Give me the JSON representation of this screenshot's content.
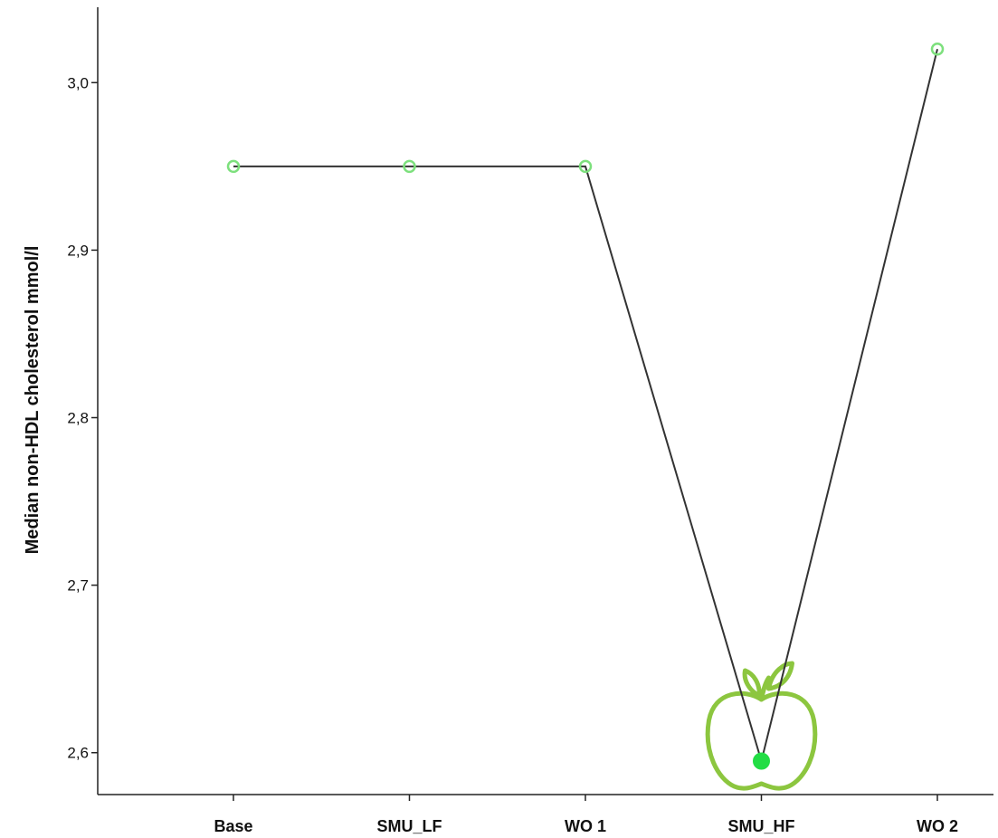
{
  "chart_data": {
    "type": "line",
    "title": "",
    "xlabel": "",
    "ylabel": "Median non-HDL cholesterol mmol/l",
    "categories": [
      "Base",
      "SMU_LF",
      "WO 1",
      "SMU_HF",
      "WO 2"
    ],
    "series": [
      {
        "values": [
          2.95,
          2.95,
          2.95,
          2.595,
          3.02
        ]
      }
    ],
    "highlighted_category": "SMU_HF",
    "y_ticks": [
      "2,6",
      "2,7",
      "2,8",
      "2,9",
      "3,0"
    ],
    "y_tick_values": [
      2.6,
      2.7,
      2.8,
      2.9,
      3.0
    ],
    "ylim": [
      2.575,
      3.045
    ],
    "grid": false,
    "legend": "none",
    "colors": {
      "line": "#333333",
      "marker": "#7de07d",
      "highlight_marker": "#22dd44",
      "apple": "#8cc63f",
      "axis": "#222222"
    },
    "icon": "apple-icon"
  }
}
